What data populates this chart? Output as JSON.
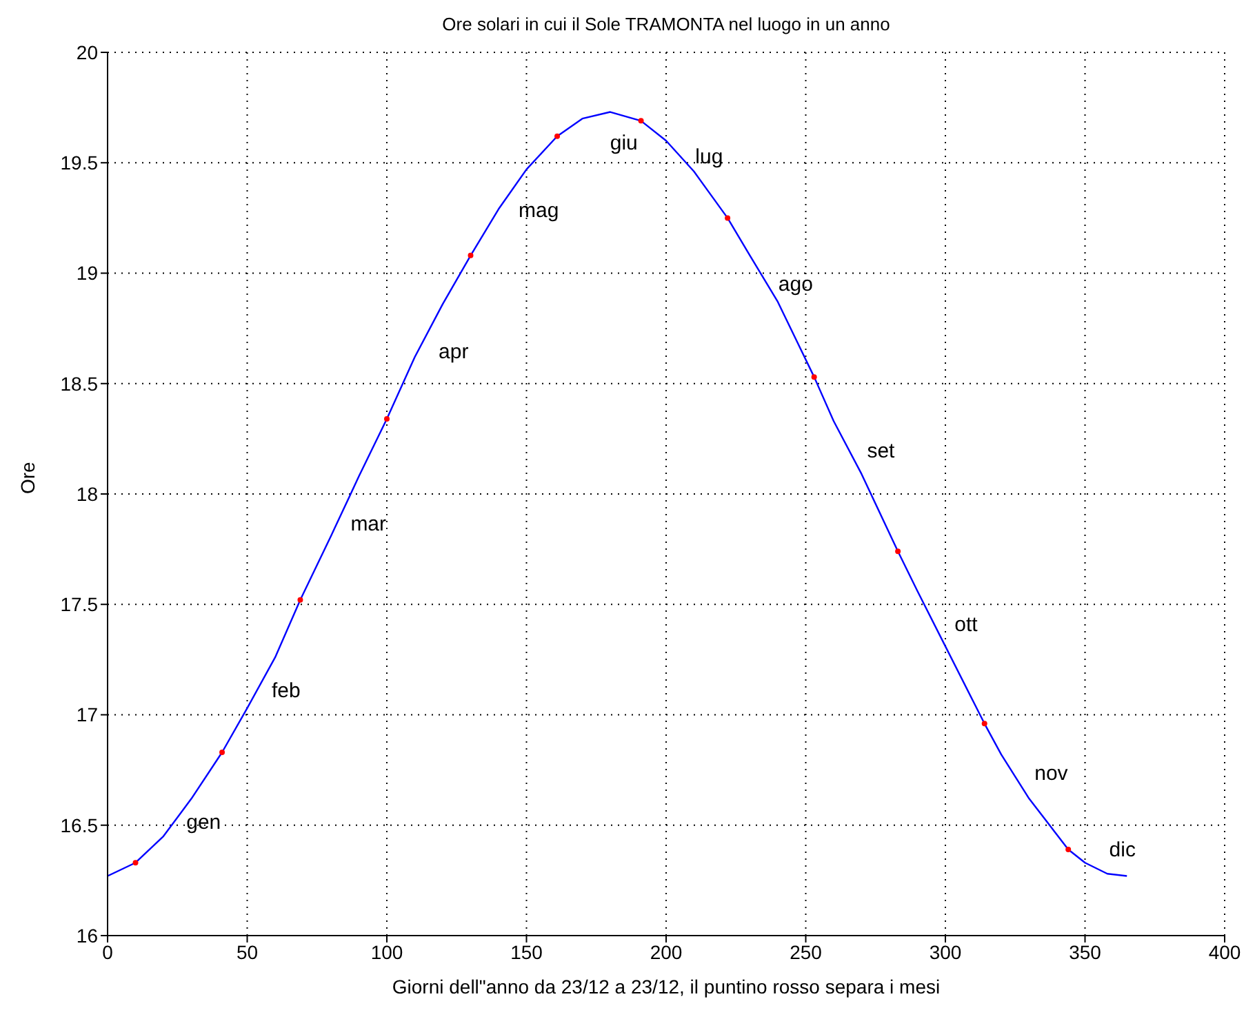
{
  "chart_data": {
    "type": "line",
    "title": "Ore solari in cui il Sole TRAMONTA nel luogo in un anno",
    "xlabel": "Giorni dell\"anno da 23/12 a 23/12, il puntino rosso separa i mesi",
    "ylabel": "Ore",
    "xlim": [
      0,
      400
    ],
    "xticks": [
      0,
      50,
      100,
      150,
      200,
      250,
      300,
      350,
      400
    ],
    "ylim": [
      16,
      20
    ],
    "yticks": [
      16,
      16.5,
      17,
      17.5,
      18,
      18.5,
      19,
      19.5,
      20
    ],
    "grid": true,
    "series": [
      {
        "type": "line",
        "color": "#0000ff",
        "marker": "none",
        "line_style": "solid",
        "x": [
          0,
          10,
          20,
          30,
          41,
          50,
          60,
          69,
          80,
          90,
          100,
          110,
          120,
          130,
          140,
          150,
          161,
          170,
          180,
          191,
          200,
          210,
          222,
          230,
          240,
          253,
          260,
          270,
          283,
          290,
          300,
          314,
          320,
          330,
          344,
          350,
          358,
          365
        ],
        "values": [
          16.27,
          16.33,
          16.45,
          16.62,
          16.83,
          17.03,
          17.26,
          17.52,
          17.81,
          18.08,
          18.34,
          18.62,
          18.86,
          19.08,
          19.29,
          19.47,
          19.62,
          19.7,
          19.73,
          19.69,
          19.6,
          19.46,
          19.25,
          19.08,
          18.87,
          18.53,
          18.33,
          18.09,
          17.74,
          17.56,
          17.31,
          16.96,
          16.82,
          16.62,
          16.39,
          16.33,
          16.28,
          16.27
        ]
      },
      {
        "type": "scatter",
        "color": "#ff0000",
        "marker": "circle",
        "x": [
          10,
          41,
          69,
          100,
          130,
          161,
          191,
          222,
          253,
          283,
          314,
          344
        ],
        "values": [
          16.33,
          16.83,
          17.52,
          18.34,
          19.08,
          19.62,
          19.69,
          19.25,
          18.53,
          17.74,
          16.96,
          16.39
        ]
      }
    ],
    "annotations": [
      "gen",
      "feb",
      "mar",
      "apr",
      "mag",
      "giu",
      "lug",
      "ago",
      "set",
      "ott",
      "nov",
      "dic"
    ]
  }
}
